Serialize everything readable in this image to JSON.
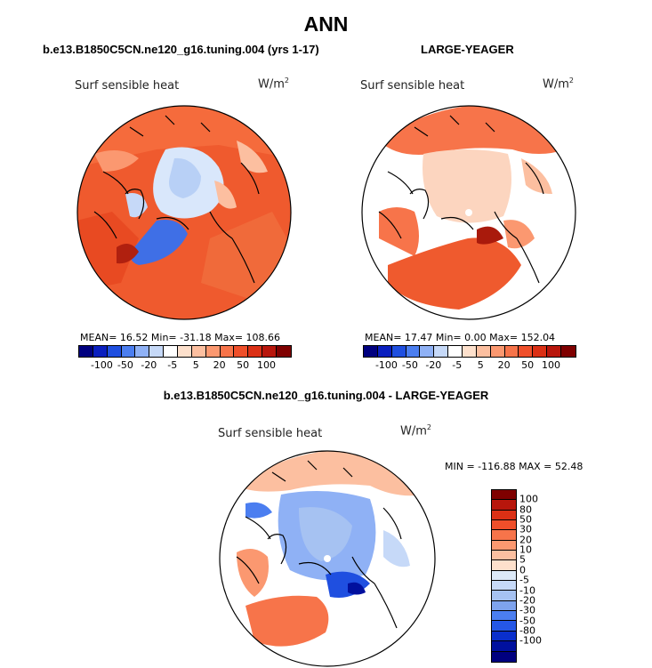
{
  "title": "ANN",
  "panels": [
    {
      "title": "b.e13.B1850C5CN.ne120_g16.tuning.004 (yrs 1-17)",
      "variable": "Surf sensible heat",
      "units": "W/m",
      "units_exp": "2",
      "stats": "MEAN=   16.52   Min=  -31.18   Max=  108.66"
    },
    {
      "title": "LARGE-YEAGER",
      "variable": "Surf sensible heat",
      "units": "W/m",
      "units_exp": "2",
      "stats": "MEAN=   17.47   Min=    0.00   Max=  152.04"
    },
    {
      "title": "b.e13.B1850C5CN.ne120_g16.tuning.004 - LARGE-YEAGER",
      "variable": "Surf sensible heat",
      "units": "W/m",
      "units_exp": "2",
      "stats": "MIN = -116.88  MAX =   52.48"
    }
  ],
  "colorbar_top": {
    "labels": [
      "-100",
      "-50",
      "-20",
      "-5",
      "5",
      "20",
      "50",
      "100"
    ],
    "colors": [
      "#00007f",
      "#0a1fbf",
      "#1f4fe0",
      "#4b7ef0",
      "#8fb1f5",
      "#c6d9f8",
      "#ffffff",
      "#fde0cc",
      "#fcbfa0",
      "#fb9870",
      "#f7744a",
      "#ef4f2a",
      "#db3015",
      "#b8160c",
      "#7f0000"
    ]
  },
  "colorbar_diff": {
    "labels": [
      "100",
      "80",
      "50",
      "30",
      "20",
      "10",
      "5",
      "0",
      "-5",
      "-10",
      "-20",
      "-30",
      "-50",
      "-80",
      "-100"
    ],
    "colors": [
      "#7f0000",
      "#b8160c",
      "#db3015",
      "#ef4f2a",
      "#f7744a",
      "#fb9870",
      "#fcbfa0",
      "#fde0cc",
      "#dce9f8",
      "#c6d9f8",
      "#a6c2f2",
      "#7ea3ee",
      "#4b7ef0",
      "#2557e6",
      "#0a2fcc",
      "#00109e",
      "#00007f"
    ]
  }
}
